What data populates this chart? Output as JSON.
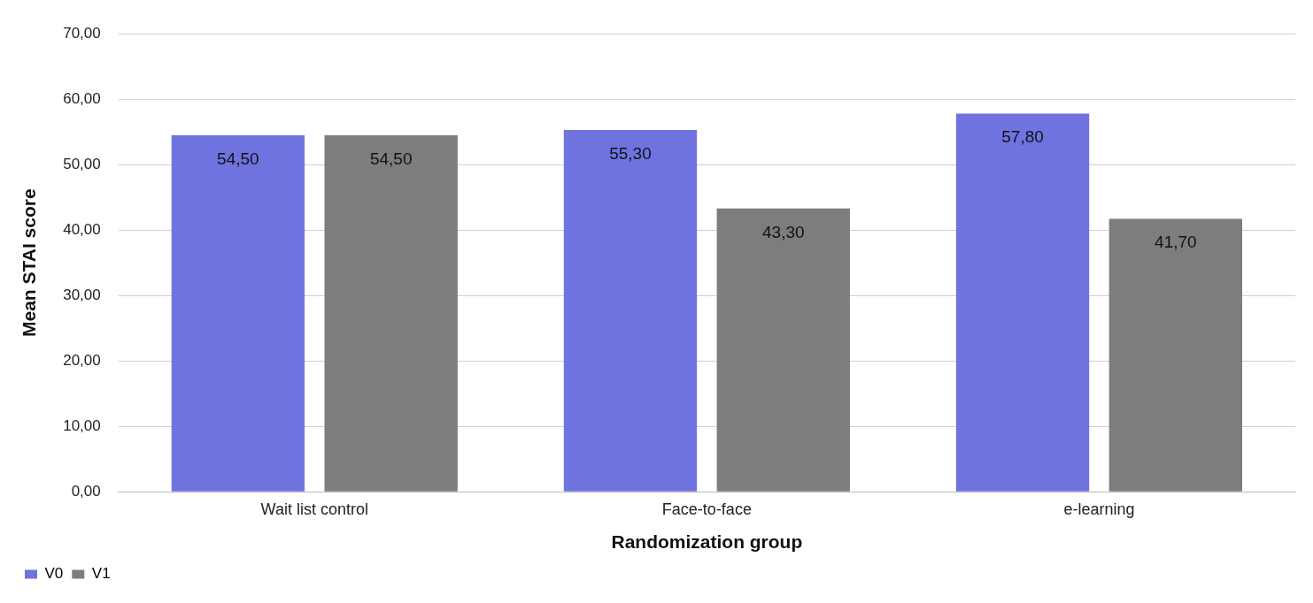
{
  "chart_data": {
    "type": "bar",
    "xlabel": "Randomization group",
    "ylabel": "Mean STAI score",
    "categories": [
      "Wait list control",
      "Face-to-face",
      "e-learning"
    ],
    "series": [
      {
        "name": "V0",
        "color": "#6f73df",
        "values": [
          54.5,
          55.3,
          57.8
        ],
        "value_labels": [
          "54,50",
          "55,30",
          "57,80"
        ]
      },
      {
        "name": "V1",
        "color": "#7d7d7d",
        "values": [
          54.5,
          43.3,
          41.7
        ],
        "value_labels": [
          "54,50",
          "43,30",
          "41,70"
        ]
      }
    ],
    "ylim": [
      0,
      70
    ],
    "yticks": [
      {
        "value": 0,
        "label": "0,00"
      },
      {
        "value": 10,
        "label": "10,00"
      },
      {
        "value": 20,
        "label": "20,00"
      },
      {
        "value": 30,
        "label": "30,00"
      },
      {
        "value": 40,
        "label": "40,00"
      },
      {
        "value": 50,
        "label": "50,00"
      },
      {
        "value": 60,
        "label": "60,00"
      },
      {
        "value": 70,
        "label": "70,00"
      }
    ],
    "grid": "y",
    "legend": "bottom left"
  }
}
